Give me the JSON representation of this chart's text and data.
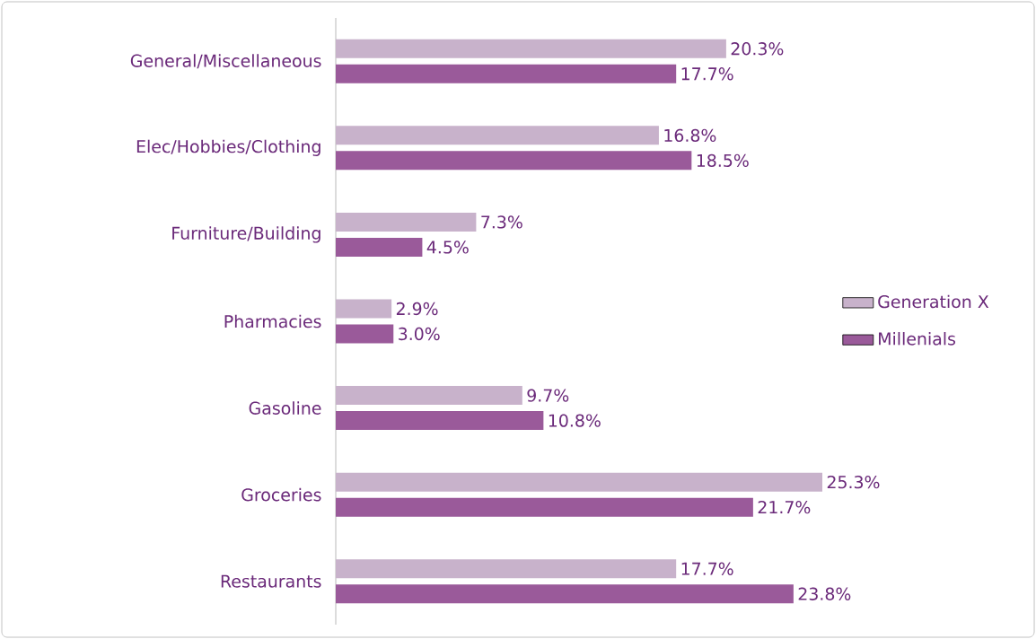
{
  "chart_data": {
    "type": "bar",
    "orientation": "horizontal",
    "categories": [
      "General/Miscellaneous",
      "Elec/Hobbies/Clothing",
      "Furniture/Building",
      "Pharmacies",
      "Gasoline",
      "Groceries",
      "Restaurants"
    ],
    "series": [
      {
        "name": "Generation X",
        "color": "#c8b2cb",
        "values": [
          20.3,
          16.8,
          7.3,
          2.9,
          9.7,
          25.3,
          17.7
        ],
        "value_labels": [
          "20.3%",
          "16.8%",
          "7.3%",
          "2.9%",
          "9.7%",
          "25.3%",
          "17.7%"
        ]
      },
      {
        "name": "Millenials",
        "color": "#9a5a9a",
        "values": [
          17.7,
          18.5,
          4.5,
          3.0,
          10.8,
          21.7,
          23.8
        ],
        "value_labels": [
          "17.7%",
          "18.5%",
          "4.5%",
          "3.0%",
          "10.8%",
          "21.7%",
          "23.8%"
        ]
      }
    ],
    "legend": "right",
    "grid": false
  }
}
